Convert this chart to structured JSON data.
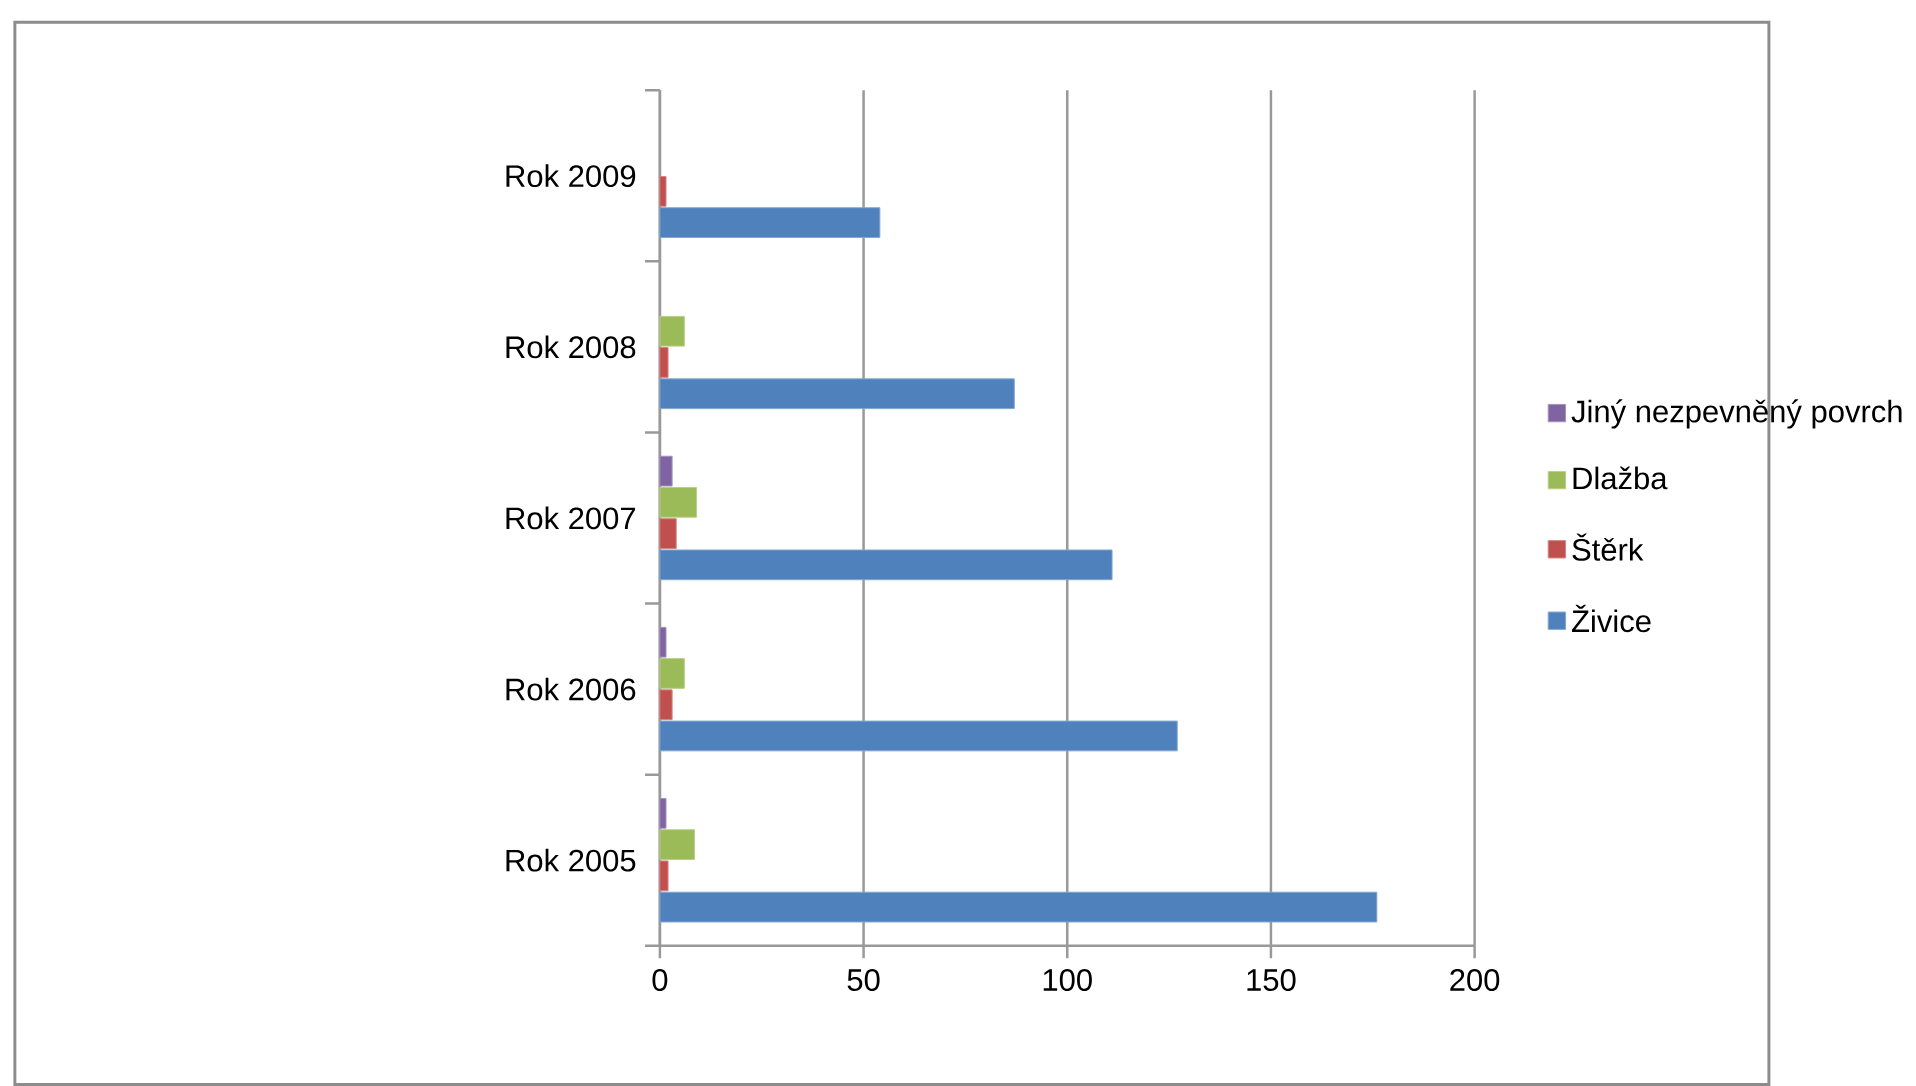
{
  "chart_data": {
    "type": "bar",
    "orientation": "horizontal",
    "categories": [
      "Rok 2009",
      "Rok 2008",
      "Rok 2007",
      "Rok 2006",
      "Rok 2005"
    ],
    "series": [
      {
        "name": "Živice",
        "color": "#4f81bd",
        "values": [
          54,
          87,
          111,
          127,
          176
        ]
      },
      {
        "name": "Štěrk",
        "color": "#c0504d",
        "values": [
          1.5,
          2,
          4,
          3,
          2
        ]
      },
      {
        "name": "Dlažba",
        "color": "#9bbb59",
        "values": [
          null,
          6,
          9,
          6,
          8.5
        ]
      },
      {
        "name": "Jiný nezpevněný povrch",
        "color": "#8064a2",
        "values": [
          null,
          null,
          3,
          1.5,
          1.5
        ]
      }
    ],
    "xlim": [
      0,
      200
    ],
    "xticks": [
      0,
      50,
      100,
      150,
      200
    ],
    "grid": "x",
    "legend": "right"
  }
}
